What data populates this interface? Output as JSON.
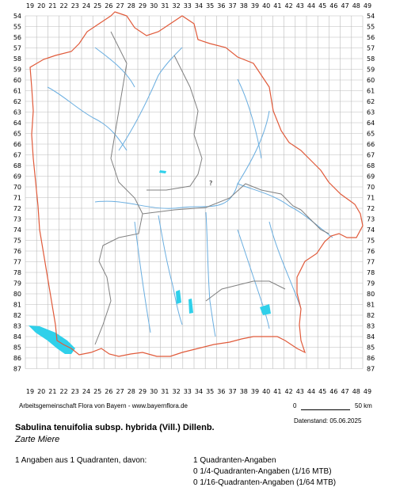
{
  "grid": {
    "x_labels": [
      "19",
      "20",
      "21",
      "22",
      "23",
      "24",
      "25",
      "26",
      "27",
      "28",
      "29",
      "30",
      "31",
      "32",
      "33",
      "34",
      "35",
      "36",
      "37",
      "38",
      "39",
      "40",
      "41",
      "42",
      "43",
      "44",
      "45",
      "46",
      "47",
      "48",
      "49"
    ],
    "y_labels": [
      "54",
      "55",
      "56",
      "57",
      "58",
      "59",
      "60",
      "61",
      "62",
      "63",
      "64",
      "65",
      "66",
      "67",
      "68",
      "69",
      "70",
      "71",
      "72",
      "73",
      "74",
      "75",
      "76",
      "77",
      "78",
      "79",
      "80",
      "81",
      "82",
      "83",
      "84",
      "85",
      "86",
      "87"
    ]
  },
  "map": {
    "unknown_marker": "?",
    "colors": {
      "outer_border": "#e05a3a",
      "district_border": "#808080",
      "rivers": "#6aaee0",
      "lakes": "#2fd0ea",
      "grid": "#bbbbbb"
    }
  },
  "footer": {
    "credit": "Arbeitsgemeinschaft Flora von Bayern - www.bayernflora.de",
    "scale_start": "0",
    "scale_end": "50 km",
    "date": "Datenstand: 05.06.2025",
    "species_name": "Sabulina tenuifolia subsp. hybrida (Vill.) Dillenb.",
    "common_name": "Zarte Miere",
    "summary": "1 Angaben aus 1 Quadranten, davon:",
    "quadrant_counts": [
      "1 Quadranten-Angaben",
      "0 1/4-Quadranten-Angaben (1/16 MTB)",
      "0 1/16-Quadranten-Angaben (1/64 MTB)"
    ]
  }
}
